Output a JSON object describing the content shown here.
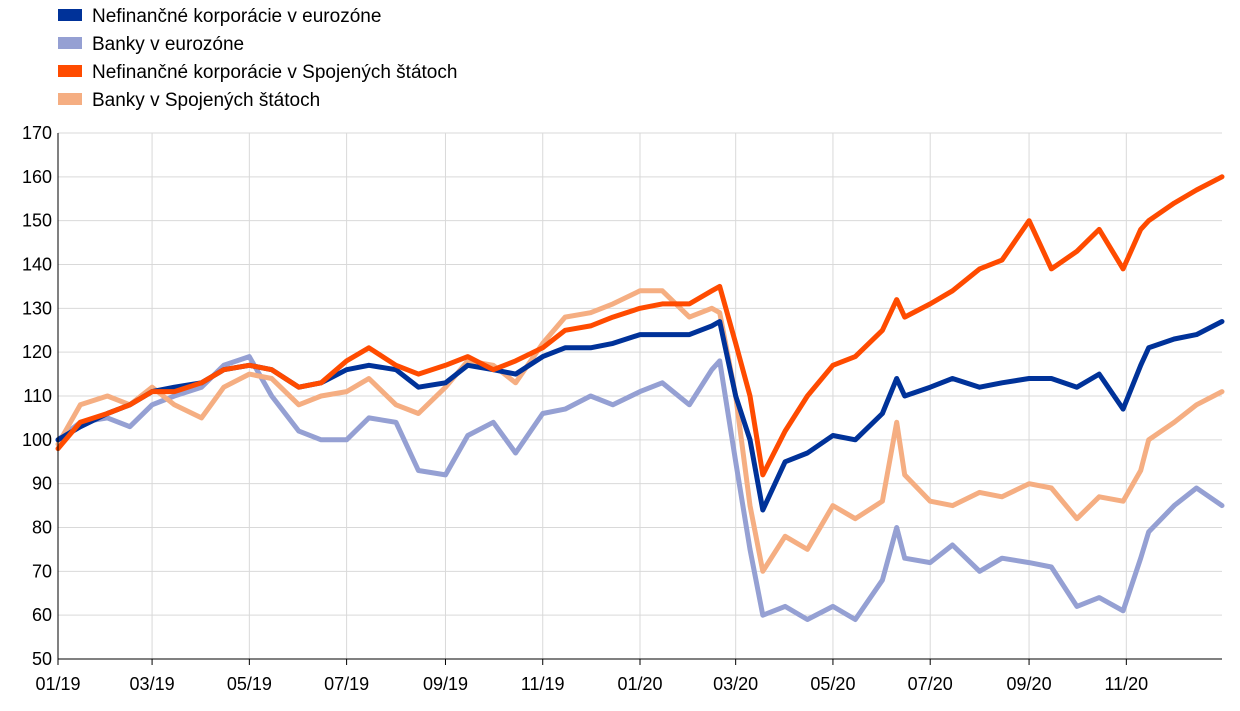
{
  "chart_data": {
    "type": "line",
    "title": "",
    "xlabel": "",
    "ylabel": "",
    "ylim": [
      50,
      170
    ],
    "yticks": [
      50,
      60,
      70,
      80,
      90,
      100,
      110,
      120,
      130,
      140,
      150,
      160,
      170
    ],
    "xlim": [
      "2019-01-01",
      "2020-12-31"
    ],
    "xticks": [
      {
        "date": "2019-01-01",
        "label": "01/19"
      },
      {
        "date": "2019-03-01",
        "label": "03/19"
      },
      {
        "date": "2019-05-01",
        "label": "05/19"
      },
      {
        "date": "2019-07-01",
        "label": "07/19"
      },
      {
        "date": "2019-09-01",
        "label": "09/19"
      },
      {
        "date": "2019-11-01",
        "label": "11/19"
      },
      {
        "date": "2020-01-01",
        "label": "01/20"
      },
      {
        "date": "2020-03-01",
        "label": "03/20"
      },
      {
        "date": "2020-05-01",
        "label": "05/20"
      },
      {
        "date": "2020-07-01",
        "label": "07/20"
      },
      {
        "date": "2020-09-01",
        "label": "09/20"
      },
      {
        "date": "2020-11-01",
        "label": "11/20"
      }
    ],
    "grid": true,
    "legend_placement": "top-left",
    "x": [
      "2019-01-01",
      "2019-01-15",
      "2019-02-01",
      "2019-02-15",
      "2019-03-01",
      "2019-03-15",
      "2019-04-01",
      "2019-04-15",
      "2019-05-01",
      "2019-05-15",
      "2019-06-01",
      "2019-06-15",
      "2019-07-01",
      "2019-07-15",
      "2019-08-01",
      "2019-08-15",
      "2019-09-01",
      "2019-09-15",
      "2019-10-01",
      "2019-10-15",
      "2019-11-01",
      "2019-11-15",
      "2019-12-01",
      "2019-12-15",
      "2020-01-01",
      "2020-01-15",
      "2020-02-01",
      "2020-02-15",
      "2020-02-20",
      "2020-03-01",
      "2020-03-10",
      "2020-03-18",
      "2020-04-01",
      "2020-04-15",
      "2020-05-01",
      "2020-05-15",
      "2020-06-01",
      "2020-06-10",
      "2020-06-15",
      "2020-07-01",
      "2020-07-15",
      "2020-08-01",
      "2020-08-15",
      "2020-09-01",
      "2020-09-15",
      "2020-10-01",
      "2020-10-15",
      "2020-10-30",
      "2020-11-10",
      "2020-11-15",
      "2020-12-01",
      "2020-12-15",
      "2020-12-31"
    ],
    "series": [
      {
        "name": "Nefinančné korporácie v eurozóne",
        "color": "#003299",
        "values": [
          100,
          103,
          106,
          108,
          111,
          112,
          113,
          116,
          117,
          116,
          112,
          113,
          116,
          117,
          116,
          112,
          113,
          117,
          116,
          115,
          119,
          121,
          121,
          122,
          124,
          124,
          124,
          126,
          127,
          110,
          100,
          84,
          95,
          97,
          101,
          100,
          106,
          114,
          110,
          112,
          114,
          112,
          113,
          114,
          114,
          112,
          115,
          107,
          117,
          121,
          123,
          124,
          127
        ]
      },
      {
        "name": "Banky v eurozóne",
        "color": "#95A0D3",
        "values": [
          100,
          104,
          105,
          103,
          108,
          110,
          112,
          117,
          119,
          110,
          102,
          100,
          100,
          105,
          104,
          93,
          92,
          101,
          104,
          97,
          106,
          107,
          110,
          108,
          111,
          113,
          108,
          116,
          118,
          95,
          75,
          60,
          62,
          59,
          62,
          59,
          68,
          80,
          73,
          72,
          76,
          70,
          73,
          72,
          71,
          62,
          64,
          61,
          73,
          79,
          85,
          89,
          85
        ]
      },
      {
        "name": "Nefinančné korporácie v Spojených štátoch",
        "color": "#FF4B00",
        "values": [
          98,
          104,
          106,
          108,
          111,
          111,
          113,
          116,
          117,
          116,
          112,
          113,
          118,
          121,
          117,
          115,
          117,
          119,
          116,
          118,
          121,
          125,
          126,
          128,
          130,
          131,
          131,
          134,
          135,
          122,
          110,
          92,
          102,
          110,
          117,
          119,
          125,
          132,
          128,
          131,
          134,
          139,
          141,
          150,
          139,
          143,
          148,
          139,
          148,
          150,
          154,
          157,
          160
        ]
      },
      {
        "name": "Banky v Spojených štátoch",
        "color": "#F5AE82",
        "values": [
          99,
          108,
          110,
          108,
          112,
          108,
          105,
          112,
          115,
          114,
          108,
          110,
          111,
          114,
          108,
          106,
          112,
          118,
          117,
          113,
          122,
          128,
          129,
          131,
          134,
          134,
          128,
          130,
          129,
          110,
          85,
          70,
          78,
          75,
          85,
          82,
          86,
          104,
          92,
          86,
          85,
          88,
          87,
          90,
          89,
          82,
          87,
          86,
          93,
          100,
          104,
          108,
          111
        ]
      }
    ]
  }
}
